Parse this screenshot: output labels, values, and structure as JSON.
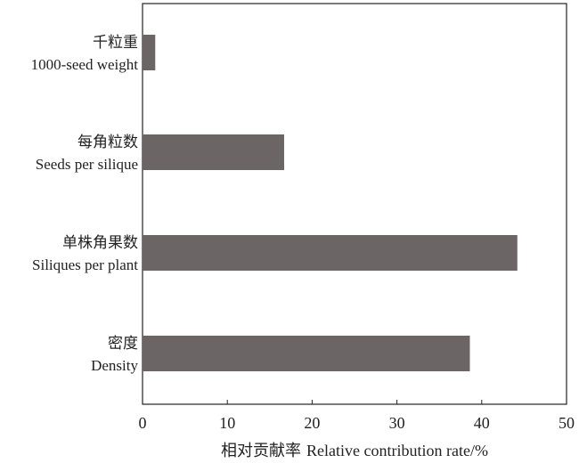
{
  "chart_data": {
    "type": "bar",
    "orientation": "horizontal",
    "categories": [
      {
        "zh": "千粒重",
        "en": "1000-seed weight"
      },
      {
        "zh": "每角粒数",
        "en": "Seeds per silique"
      },
      {
        "zh": "单株角果数",
        "en": "Siliques per plant"
      },
      {
        "zh": "密度",
        "en": "Density"
      }
    ],
    "values": [
      1.5,
      16.7,
      44.2,
      38.6
    ],
    "xlabel_zh": "相对贡献率",
    "xlabel_en": "Relative contribution rate/%",
    "xlim": [
      0,
      50
    ],
    "xticks": [
      "0",
      "10",
      "20",
      "30",
      "40",
      "50"
    ],
    "grid": false,
    "bar_color": "#6b6566"
  }
}
